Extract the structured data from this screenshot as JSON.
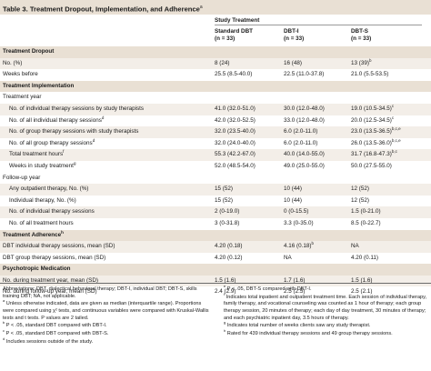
{
  "title": "Table 3. Treatment Dropout, Implementation, and Adherence",
  "title_sup": "a",
  "header": {
    "study": "Study Treatment",
    "cols": [
      {
        "name": "Standard DBT",
        "n": "(n = 33)"
      },
      {
        "name": "DBT-I",
        "n": "(n = 33)"
      },
      {
        "name": "DBT-S",
        "n": "(n = 33)"
      }
    ]
  },
  "rows": [
    {
      "type": "sec",
      "label": "Treatment Dropout"
    },
    {
      "type": "row",
      "ind": false,
      "label": "No. (%)",
      "lsup": "",
      "c1": "8 (24)",
      "c1s": "",
      "c2": "16 (48)",
      "c2s": "",
      "c3": "13 (39)",
      "c3s": "b"
    },
    {
      "type": "row",
      "ind": false,
      "label": "Weeks before",
      "lsup": "",
      "c1": "25.5 (8.5-40.0)",
      "c1s": "",
      "c2": "22.5 (11.0-37.8)",
      "c2s": "",
      "c3": "21.0 (5.5-53.5)",
      "c3s": ""
    },
    {
      "type": "sec",
      "label": "Treatment Implementation"
    },
    {
      "type": "sub",
      "label": "Treatment year"
    },
    {
      "type": "row",
      "ind": true,
      "label": "No. of individual therapy sessions by study therapists",
      "lsup": "",
      "c1": "41.0 (32.0-51.0)",
      "c1s": "",
      "c2": "30.0 (12.0-48.0)",
      "c2s": "",
      "c3": "19.0 (10.5-34.5)",
      "c3s": "c"
    },
    {
      "type": "row",
      "ind": true,
      "label": "No. of all individual therapy sessions",
      "lsup": "d",
      "c1": "42.0 (32.0-52.5)",
      "c1s": "",
      "c2": "33.0 (12.0-48.0)",
      "c2s": "",
      "c3": "20.0 (12.5-34.5)",
      "c3s": "c"
    },
    {
      "type": "row",
      "ind": true,
      "label": "No. of group therapy sessions with study therapists",
      "lsup": "",
      "c1": "32.0 (23.5-40.0)",
      "c1s": "",
      "c2": "6.0 (2.0-11.0)",
      "c2s": "",
      "c3": "23.0 (13.5-36.5)",
      "c3s": "b,c,e"
    },
    {
      "type": "row",
      "ind": true,
      "label": "No. of all group therapy sessions",
      "lsup": "d",
      "c1": "32.0 (24.0-40.0)",
      "c1s": "",
      "c2": "6.0 (2.0-11.0)",
      "c2s": "",
      "c3": "26.0 (13.5-36.0)",
      "c3s": "b,c,e"
    },
    {
      "type": "row",
      "ind": true,
      "label": "Total treatment hours",
      "lsup": "f",
      "c1": "55.3 (42.2-67.0)",
      "c1s": "",
      "c2": "40.0 (14.0-55.0)",
      "c2s": "",
      "c3": "31.7 (16.8-47.3)",
      "c3s": "b,c"
    },
    {
      "type": "row",
      "ind": true,
      "label": "Weeks in study treatment",
      "lsup": "g",
      "c1": "52.0 (48.5-54.0)",
      "c1s": "",
      "c2": "49.0 (25.0-55.0)",
      "c2s": "",
      "c3": "50.0 (27.5-55.0)",
      "c3s": ""
    },
    {
      "type": "sub",
      "label": "Follow-up year"
    },
    {
      "type": "row",
      "ind": true,
      "label": "Any outpatient therapy, No. (%)",
      "lsup": "",
      "c1": "15 (52)",
      "c1s": "",
      "c2": "10 (44)",
      "c2s": "",
      "c3": "12 (52)",
      "c3s": ""
    },
    {
      "type": "row",
      "ind": true,
      "label": "Individual therapy, No. (%)",
      "lsup": "",
      "c1": "15 (52)",
      "c1s": "",
      "c2": "10 (44)",
      "c2s": "",
      "c3": "12 (52)",
      "c3s": ""
    },
    {
      "type": "row",
      "ind": true,
      "label": "No. of individual therapy sessions",
      "lsup": "",
      "c1": "2 (0-19.0)",
      "c1s": "",
      "c2": "0 (0-15.5)",
      "c2s": "",
      "c3": "1.5 (0-21.0)",
      "c3s": ""
    },
    {
      "type": "row",
      "ind": true,
      "label": "No. of all treatment hours",
      "lsup": "",
      "c1": "3 (0-31.8)",
      "c1s": "",
      "c2": "3.3 (0-35.0)",
      "c2s": "",
      "c3": "8.5 (0-22.7)",
      "c3s": ""
    },
    {
      "type": "sec",
      "label": "Treatment Adherence",
      "lsup": "h"
    },
    {
      "type": "row",
      "ind": false,
      "label": "DBT individual therapy sessions, mean (SD)",
      "lsup": "",
      "c1": "4.20 (0.18)",
      "c1s": "",
      "c2": "4.16 (0.18)",
      "c2s": "b",
      "c3": "NA",
      "c3s": ""
    },
    {
      "type": "row",
      "ind": false,
      "label": "DBT group therapy sessions, mean (SD)",
      "lsup": "",
      "c1": "4.20 (0.12)",
      "c1s": "",
      "c2": "NA",
      "c2s": "",
      "c3": "4.20 (0.11)",
      "c3s": ""
    },
    {
      "type": "sec",
      "label": "Psychotropic Medication"
    },
    {
      "type": "row",
      "ind": false,
      "label": "No. during treatment year, mean (SD)",
      "lsup": "",
      "c1": "1.5 (1.6)",
      "c1s": "",
      "c2": "1.7 (1.6)",
      "c2s": "",
      "c3": "1.5 (1.6)",
      "c3s": ""
    },
    {
      "type": "row",
      "ind": false,
      "label": "No. during follow-up year, mean (SD)",
      "lsup": "",
      "c1": "2.4 (2.9)",
      "c1s": "",
      "c2": "2.5 (2.5)",
      "c2s": "",
      "c3": "2.5 (2.1)",
      "c3s": ""
    }
  ],
  "footnotes_left": [
    {
      "sup": "",
      "text": "Abbreviations: DBT, dialectical behavioral therapy; DBT-I, individual DBT; DBT-S, skills training DBT; NA, not applicable."
    },
    {
      "sup": "a",
      "text": "Unless otherwise indicated, data are given as median (interquartile range). Proportions were compared using χ² tests, and continuous variables were compared with Kruskal-Wallis tests and t tests. P values are 2 tailed."
    },
    {
      "sup": "b",
      "text": "P < .05, standard DBT compared with DBT-I."
    },
    {
      "sup": "c",
      "text": "P < .05, standard DBT compared with DBT-S."
    },
    {
      "sup": "d",
      "text": "Includes sessions outside of the study."
    }
  ],
  "footnotes_right": [
    {
      "sup": "e",
      "text": "P < .05, DBT-S compared with DBT-I."
    },
    {
      "sup": "f",
      "text": "Indicates total inpatient and outpatient treatment time. Each session of individual therapy, family therapy, and vocational counseling was counted as 1 hour of therapy; each group therapy session, 20 minutes of therapy; each day of day treatment, 30 minutes of therapy; and each psychiatric inpatient day, 3.5 hours of therapy."
    },
    {
      "sup": "g",
      "text": "Indicates total number of weeks clients saw any study therapist."
    },
    {
      "sup": "h",
      "text": "Rated for 439 individual therapy sessions and 49 group therapy sessions."
    }
  ]
}
